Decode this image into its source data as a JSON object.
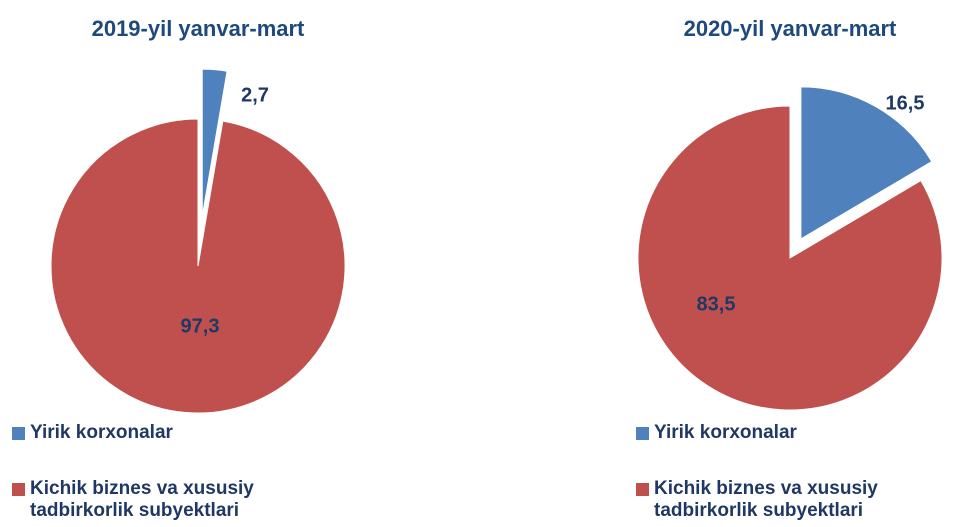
{
  "chart_data": [
    {
      "type": "pie",
      "title": "2019-yil yanvar-mart",
      "categories": [
        "Yirik korxonalar",
        "Kichik biznes va xususiy tadbirkorlik subyektlari"
      ],
      "values": [
        2.7,
        97.3
      ],
      "value_labels": [
        "2,7",
        "97,3"
      ],
      "colors": [
        "#4f81bd",
        "#c0504d"
      ],
      "legend": "bottom"
    },
    {
      "type": "pie",
      "title": "2020-yil yanvar-mart",
      "categories": [
        "Yirik korxonalar",
        "Kichik biznes va xususiy tadbirkorlik subyektlari"
      ],
      "values": [
        16.5,
        83.5
      ],
      "value_labels": [
        "16,5",
        "83,5"
      ],
      "colors": [
        "#4f81bd",
        "#c0504d"
      ],
      "legend": "bottom"
    }
  ]
}
